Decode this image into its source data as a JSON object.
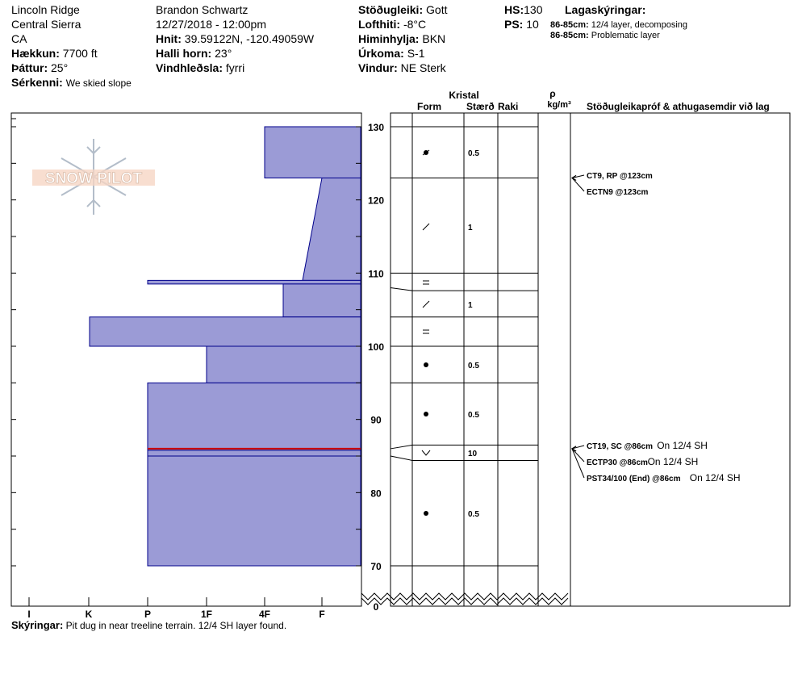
{
  "header": {
    "location": "Lincoln Ridge",
    "range": "Central Sierra",
    "state": "CA",
    "elevation_label": "Hækkun:",
    "elevation": "7700 ft",
    "aspect_label": "Þáttur:",
    "aspect": "25°",
    "features_label": "Sérkenni:",
    "features": "We skied slope",
    "observer": "Brandon Schwartz",
    "datetime": "12/27/2018 - 12:00pm",
    "coords_label": "Hnit:",
    "coords": "39.59122N, -120.49059W",
    "slope_label": "Halli horn:",
    "slope": "23°",
    "wind_loading_label": "Vindhleðsla:",
    "wind_loading": "fyrri",
    "stability_label": "Stöðugleiki:",
    "stability": "Gott",
    "air_temp_label": "Lofthiti:",
    "air_temp": "-8°C",
    "sky_label": "Himinhylja:",
    "sky": "BKN",
    "precip_label": "Úrkoma:",
    "precip": "S-1",
    "wind_label": "Vindur:",
    "wind": "NE Sterk",
    "hs_label": "HS:",
    "hs": "130",
    "ps_label": "PS:",
    "ps": "10",
    "legend_title": "Lagaskýringar:",
    "legend": [
      {
        "range": "86-85cm:",
        "text": "12/4 layer, decomposing"
      },
      {
        "range": "86-85cm:",
        "text": "Problematic layer"
      }
    ]
  },
  "logo_text": "SNOW PILOT",
  "columns": {
    "kristal": "Kristal",
    "form": "Form",
    "size": "Stærð",
    "wet": "Raki",
    "rho": "ρ",
    "density_unit": "kg/m³",
    "tests": "Stöðugleikapróf & athugasemdir við lag"
  },
  "footer": {
    "label": "Skýringar:",
    "text": "Pit dug in near treeline terrain. 12/4 SH layer found."
  },
  "chart_data": {
    "type": "snow-profile",
    "hardness_scale": [
      "I",
      "K",
      "P",
      "1F",
      "4F",
      "F"
    ],
    "hardness_order_note": "left = hardest (I), right = softest (F)",
    "depth_axis": {
      "min": 0,
      "max": 130,
      "ticks": [
        0,
        70,
        80,
        90,
        100,
        110,
        120,
        130
      ]
    },
    "hardness_profile": [
      {
        "top": 130,
        "bottom": 123,
        "hardness_top": "4F",
        "hardness_bottom": "4F"
      },
      {
        "top": 123,
        "bottom": 109,
        "hardness_top": "F+",
        "hardness_bottom": "4F+"
      },
      {
        "top": 109,
        "bottom": 108.5,
        "hardness_top": "P",
        "hardness_bottom": "P"
      },
      {
        "top": 108.5,
        "bottom": 104,
        "hardness_top": "4F-",
        "hardness_bottom": "4F-"
      },
      {
        "top": 104,
        "bottom": 100,
        "hardness_top": "I+",
        "hardness_bottom": "I+"
      },
      {
        "top": 100,
        "bottom": 95,
        "hardness_top": "1F",
        "hardness_bottom": "1F"
      },
      {
        "top": 95,
        "bottom": 70,
        "hardness_top": "P",
        "hardness_bottom": "P"
      }
    ],
    "problem_layer": {
      "top": 86,
      "bottom": 85
    },
    "layers": [
      {
        "top": 130,
        "bottom": 123,
        "form": "precip-particles",
        "size": "0.5"
      },
      {
        "top": 123,
        "bottom": 110,
        "form": "decomposing",
        "size": "1"
      },
      {
        "top": 110,
        "bottom": 108,
        "form": "crust",
        "size": ""
      },
      {
        "top": 108,
        "bottom": 104,
        "form": "decomposing",
        "size": "1"
      },
      {
        "top": 104,
        "bottom": 100,
        "form": "crust",
        "size": ""
      },
      {
        "top": 100,
        "bottom": 95,
        "form": "rounded",
        "size": "0.5"
      },
      {
        "top": 95,
        "bottom": 86,
        "form": "rounded",
        "size": "0.5"
      },
      {
        "top": 86,
        "bottom": 85,
        "form": "surface-hoar",
        "size": "10"
      },
      {
        "top": 85,
        "bottom": 70,
        "form": "rounded",
        "size": "0.5"
      }
    ],
    "tests": [
      {
        "depth": 123,
        "code": "CT9, RP @123cm",
        "note": ""
      },
      {
        "depth": 123,
        "code": "ECTN9 @123cm",
        "note": ""
      },
      {
        "depth": 86,
        "code": "CT19, SC @86cm",
        "note": "On 12/4 SH"
      },
      {
        "depth": 86,
        "code": "ECTP30 @86cm",
        "note": "On 12/4 SH"
      },
      {
        "depth": 86,
        "code": "PST34/100 (End) @86cm",
        "note": "On 12/4 SH"
      }
    ]
  },
  "colors": {
    "profile_fill": "#9b9bd6",
    "profile_stroke": "#00008b",
    "problem_line": "#cc0000"
  }
}
